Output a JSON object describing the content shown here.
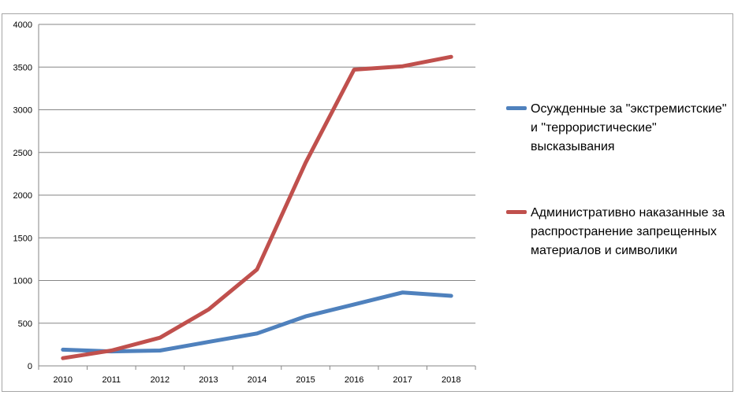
{
  "chart_data": {
    "type": "line",
    "title": "",
    "xlabel": "",
    "ylabel": "",
    "ylim": [
      0,
      4000
    ],
    "yticks": [
      0,
      500,
      1000,
      1500,
      2000,
      2500,
      3000,
      3500,
      4000
    ],
    "categories": [
      "2010",
      "2011",
      "2012",
      "2013",
      "2014",
      "2015",
      "2016",
      "2017",
      "2018"
    ],
    "grid": true,
    "legend_position": "right",
    "series": [
      {
        "name": "Осужденные за \"экстремистские\" и \"террористические\" высказывания",
        "color": "#4f81bd",
        "values": [
          190,
          170,
          180,
          280,
          380,
          580,
          720,
          860,
          820
        ]
      },
      {
        "name": "Административно наказанные за распространение запрещенных материалов и символики",
        "color": "#c0504d",
        "values": [
          90,
          180,
          330,
          660,
          1130,
          2380,
          3470,
          3510,
          3620
        ]
      }
    ]
  }
}
